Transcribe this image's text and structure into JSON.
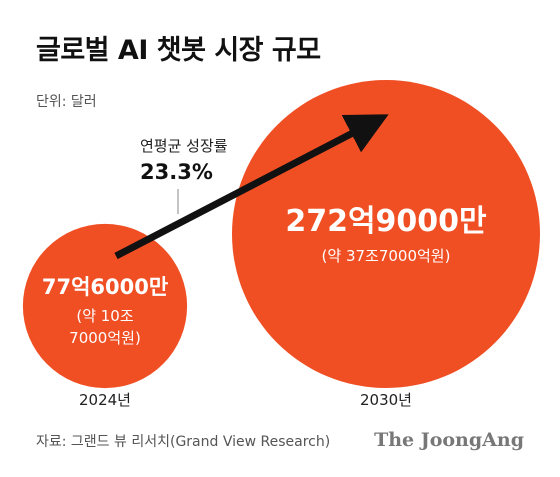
{
  "title": "글로벌 AI 챗봇 시장 규모",
  "unit": "단위: 달러",
  "annotation": {
    "label": "연평균 성장률",
    "value": "23.3%"
  },
  "source": "자료: 그랜드 뷰 리서치(Grand View Research)",
  "brand": "The JoongAng",
  "colors": {
    "bubble": "#f04e23",
    "arrow": "#111111"
  },
  "chart_data": {
    "type": "bubble",
    "categories": [
      "2024년",
      "2030년"
    ],
    "values": [
      7760000000,
      27290000000
    ],
    "labels": [
      {
        "main": "77억6000만",
        "sub": [
          "(약 10조",
          "7000억원)"
        ]
      },
      {
        "main": "272억9000만",
        "sub": [
          "(약 37조7000억원)"
        ]
      }
    ],
    "cagr": "23.3%"
  }
}
